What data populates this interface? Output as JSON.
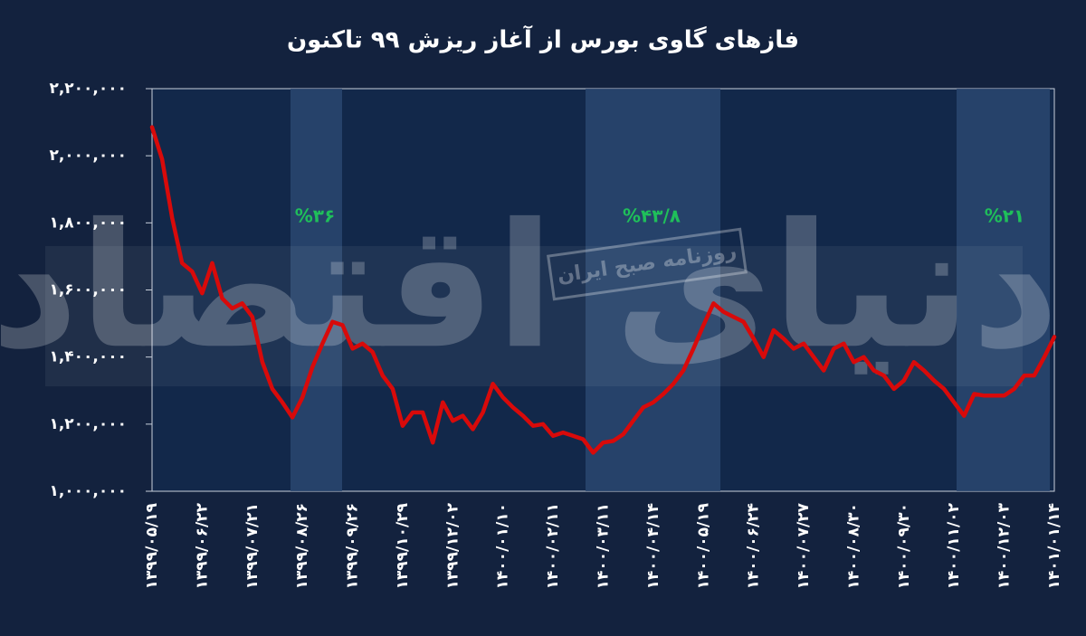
{
  "chart_data": {
    "type": "line",
    "title": "فازهای گاوی بورس از آغاز ریزش ۹۹ تاکنون",
    "categories": [
      "۱۳۹۹/۰۵/۱۹",
      null,
      null,
      null,
      null,
      "۱۳۹۹/۰۶/۲۲",
      null,
      null,
      null,
      null,
      "۱۳۹۹/۰۷/۲۱",
      null,
      null,
      null,
      null,
      "۱۳۹۹/۰۸/۲۶",
      null,
      null,
      null,
      null,
      "۱۳۹۹/۰۹/۲۶",
      null,
      null,
      null,
      null,
      "۱۳۹۹/۱۰/۲۹",
      null,
      null,
      null,
      null,
      "۱۳۹۹/۱۲/۰۲",
      null,
      null,
      null,
      null,
      "۱۴۰۰/۰۱/۱۰",
      null,
      null,
      null,
      null,
      "۱۴۰۰/۰۲/۱۱",
      null,
      null,
      null,
      null,
      "۱۴۰۰/۰۳/۱۱",
      null,
      null,
      null,
      null,
      "۱۴۰۰/۰۴/۱۴",
      null,
      null,
      null,
      null,
      "۱۴۰۰/۰۵/۱۹",
      null,
      null,
      null,
      null,
      "۱۴۰۰/۰۶/۲۴",
      null,
      null,
      null,
      null,
      "۱۴۰۰/۰۷/۲۷",
      null,
      null,
      null,
      null,
      "۱۴۰۰/۰۸/۳۰",
      null,
      null,
      null,
      null,
      "۱۴۰۰/۰۹/۳۰",
      null,
      null,
      null,
      null,
      "۱۴۰۰/۱۱/۰۲",
      null,
      null,
      null,
      null,
      "۱۴۰۰/۱۲/۰۳",
      null,
      null,
      null,
      null,
      "۱۴۰۱/۰۱/۱۴"
    ],
    "values": [
      2085000,
      1990000,
      1815000,
      1680000,
      1655000,
      1590000,
      1680000,
      1575000,
      1545000,
      1560000,
      1520000,
      1385000,
      1305000,
      1265000,
      1220000,
      1280000,
      1370000,
      1440000,
      1505000,
      1495000,
      1425000,
      1440000,
      1415000,
      1345000,
      1305000,
      1195000,
      1235000,
      1235000,
      1145000,
      1265000,
      1210000,
      1225000,
      1185000,
      1235000,
      1320000,
      1280000,
      1250000,
      1225000,
      1195000,
      1200000,
      1165000,
      1175000,
      1165000,
      1155000,
      1115000,
      1145000,
      1150000,
      1170000,
      1210000,
      1250000,
      1265000,
      1290000,
      1320000,
      1360000,
      1425000,
      1495000,
      1560000,
      1535000,
      1520000,
      1505000,
      1455000,
      1400000,
      1480000,
      1455000,
      1425000,
      1440000,
      1400000,
      1360000,
      1425000,
      1440000,
      1385000,
      1400000,
      1360000,
      1345000,
      1305000,
      1330000,
      1385000,
      1360000,
      1330000,
      1305000,
      1265000,
      1225000,
      1290000,
      1285000,
      1285000,
      1285000,
      1305000,
      1345000,
      1345000,
      1400000,
      1460000
    ],
    "color": "#d80a0a",
    "ylim": [
      1000000,
      2200000
    ],
    "yticks": [
      {
        "value": 1000000,
        "label": "۱,۰۰۰,۰۰۰"
      },
      {
        "value": 1200000,
        "label": "۱,۲۰۰,۰۰۰"
      },
      {
        "value": 1400000,
        "label": "۱,۴۰۰,۰۰۰"
      },
      {
        "value": 1600000,
        "label": "۱,۶۰۰,۰۰۰"
      },
      {
        "value": 1800000,
        "label": "۱,۸۰۰,۰۰۰"
      },
      {
        "value": 2000000,
        "label": "۲,۰۰۰,۰۰۰"
      },
      {
        "value": 2200000,
        "label": "۲,۲۰۰,۰۰۰"
      }
    ],
    "annotations": [
      "%۳۶",
      "%۴۳/۸",
      "%۲۱"
    ],
    "watermark": [
      "دنیای اقتصاد",
      "روزنامه صبح ایران"
    ]
  }
}
